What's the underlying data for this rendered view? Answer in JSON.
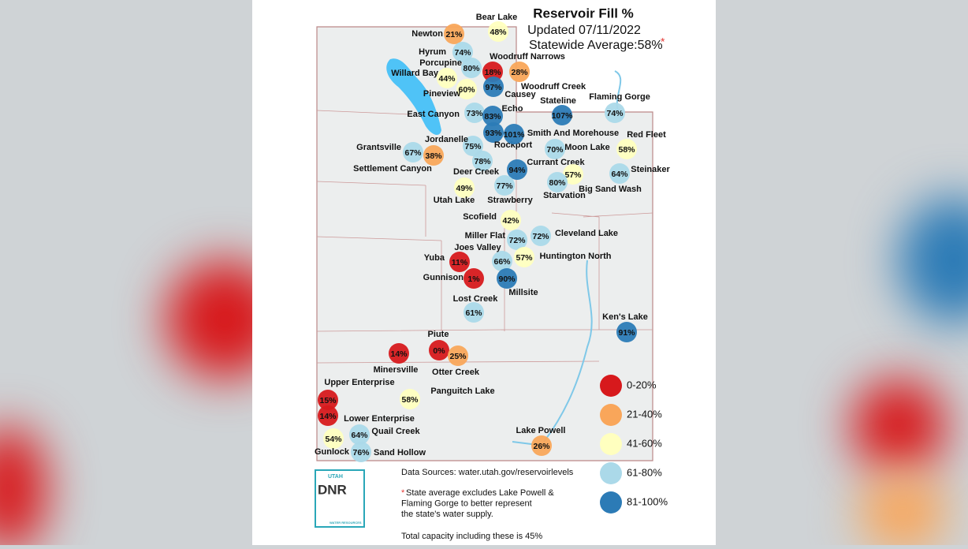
{
  "header": {
    "title": "Reservoir Fill %",
    "updated": "Updated 07/11/2022",
    "average": "Statewide Average:58%",
    "asterisk": "*"
  },
  "reservoirs": [
    {
      "name": "Bear Lake",
      "value": "48%",
      "color": "#ffffbf"
    },
    {
      "name": "Newton",
      "value": "21%",
      "color": "#f9a65a"
    },
    {
      "name": "Hyrum",
      "value": "74%",
      "color": "#abd9e9"
    },
    {
      "name": "Porcupine",
      "value": "80%",
      "color": "#abd9e9"
    },
    {
      "name": "Woodruff Narrows",
      "value": "28%",
      "color": "#f9a65a"
    },
    {
      "name": "Woodruff Creek",
      "value": "18%",
      "color": "#d7191c"
    },
    {
      "name": "Causey",
      "value": "97%",
      "color": "#2c7bb6"
    },
    {
      "name": "Willard Bay",
      "value": "44%",
      "color": "#ffffbf"
    },
    {
      "name": "Pineview",
      "value": "60%",
      "color": "#ffffbf"
    },
    {
      "name": "East Canyon",
      "value": "73%",
      "color": "#abd9e9"
    },
    {
      "name": "Echo",
      "value": "83%",
      "color": "#2c7bb6"
    },
    {
      "name": "Stateline",
      "value": "107%",
      "color": "#2c7bb6"
    },
    {
      "name": "Flaming Gorge",
      "value": "74%",
      "color": "#abd9e9"
    },
    {
      "name": "Jordanelle",
      "value": "75%",
      "color": "#abd9e9"
    },
    {
      "name": "Rockport",
      "value": "93%",
      "color": "#2c7bb6"
    },
    {
      "name": "Smith And Morehouse",
      "value": "101%",
      "color": "#2c7bb6"
    },
    {
      "name": "Red Fleet",
      "value": "58%",
      "color": "#ffffbf"
    },
    {
      "name": "Moon Lake",
      "value": "70%",
      "color": "#abd9e9"
    },
    {
      "name": "Grantsville",
      "value": "67%",
      "color": "#abd9e9"
    },
    {
      "name": "Settlement Canyon",
      "value": "38%",
      "color": "#f9a65a"
    },
    {
      "name": "Currant Creek",
      "value": "94%",
      "color": "#2c7bb6"
    },
    {
      "name": "Deer Creek",
      "value": "78%",
      "color": "#abd9e9"
    },
    {
      "name": "Steinaker",
      "value": "64%",
      "color": "#abd9e9"
    },
    {
      "name": "Big Sand Wash",
      "value": "57%",
      "color": "#ffffbf"
    },
    {
      "name": "Starvation",
      "value": "80%",
      "color": "#abd9e9"
    },
    {
      "name": "Strawberry",
      "value": "77%",
      "color": "#abd9e9"
    },
    {
      "name": "Utah Lake",
      "value": "49%",
      "color": "#ffffbf"
    },
    {
      "name": "Scofield",
      "value": "42%",
      "color": "#ffffbf"
    },
    {
      "name": "Miller Flat",
      "value": "72%",
      "color": "#abd9e9"
    },
    {
      "name": "Cleveland Lake",
      "value": "72%",
      "color": "#abd9e9"
    },
    {
      "name": "Joes Valley",
      "value": "66%",
      "color": "#abd9e9"
    },
    {
      "name": "Huntington North",
      "value": "57%",
      "color": "#ffffbf"
    },
    {
      "name": "Yuba",
      "value": "11%",
      "color": "#d7191c"
    },
    {
      "name": "Gunnison",
      "value": "1%",
      "color": "#d7191c"
    },
    {
      "name": "Millsite",
      "value": "90%",
      "color": "#2c7bb6"
    },
    {
      "name": "Lost Creek",
      "value": "61%",
      "color": "#abd9e9"
    },
    {
      "name": "Ken's Lake",
      "value": "91%",
      "color": "#2c7bb6"
    },
    {
      "name": "Piute",
      "value": "0%",
      "color": "#d7191c"
    },
    {
      "name": "Minersville",
      "value": "14%",
      "color": "#d7191c"
    },
    {
      "name": "Otter Creek",
      "value": "25%",
      "color": "#f9a65a"
    },
    {
      "name": "Upper Enterprise",
      "value": "15%",
      "color": "#d7191c"
    },
    {
      "name": "Panguitch Lake",
      "value": "58%",
      "color": "#ffffbf"
    },
    {
      "name": "Lower Enterprise",
      "value": "14%",
      "color": "#d7191c"
    },
    {
      "name": "Quail Creek",
      "value": "64%",
      "color": "#abd9e9"
    },
    {
      "name": "Lake Powell",
      "value": "26%",
      "color": "#f9a65a"
    },
    {
      "name": "Gunlock",
      "value": "54%",
      "color": "#ffffbf"
    },
    {
      "name": "Sand Hollow",
      "value": "76%",
      "color": "#abd9e9"
    }
  ],
  "legend": [
    {
      "label": "0-20%",
      "color": "#d7191c"
    },
    {
      "label": "21-40%",
      "color": "#f9a65a"
    },
    {
      "label": "41-60%",
      "color": "#ffffbf"
    },
    {
      "label": "61-80%",
      "color": "#abd9e9"
    },
    {
      "label": "81-100%",
      "color": "#2c7bb6"
    }
  ],
  "logo": {
    "top": "UTAH",
    "main": "DNR",
    "sub": "WATER RESOURCES"
  },
  "footer": {
    "sources": "Data Sources: water.utah.gov/reservoirlevels",
    "note_star": "*",
    "note_lines": [
      "State average excludes Lake Powell &",
      "Flaming Gorge to better represent",
      "the state's water supply."
    ],
    "total": "Total capacity including these is 45%"
  }
}
